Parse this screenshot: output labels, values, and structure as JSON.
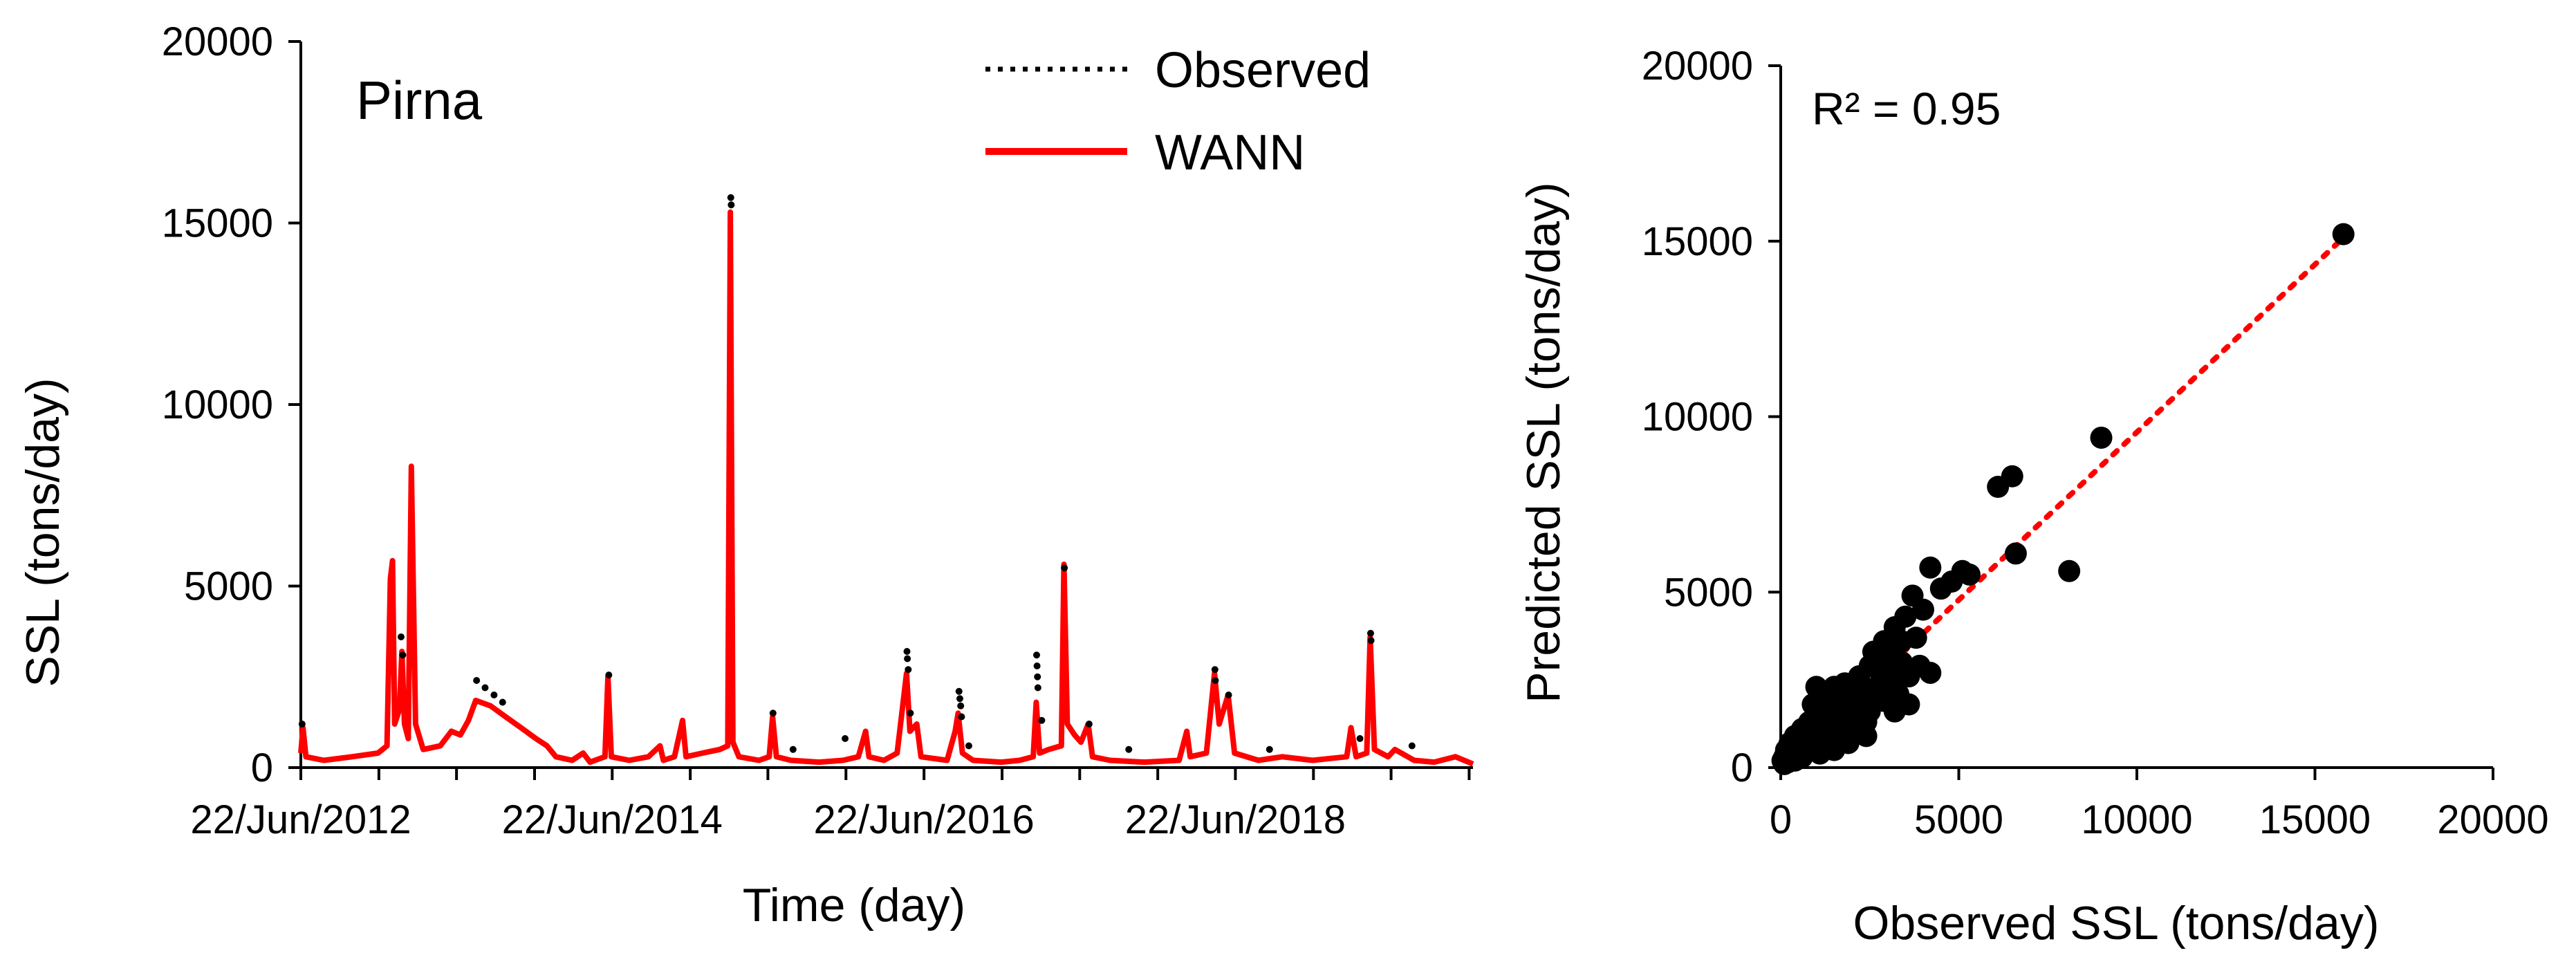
{
  "chart_data": [
    {
      "type": "line",
      "annotation": "Pirna",
      "xlabel": "Time (day)",
      "ylabel": "SSL (tons/day)",
      "xlim": [
        "2012-06-22",
        "2019-12-31"
      ],
      "ylim": [
        0,
        20000
      ],
      "yticks": [
        "0",
        "5000",
        "10000",
        "15000",
        "20000"
      ],
      "xticks": [
        {
          "date": "2012-06-22",
          "label": "22/Jun/2012"
        },
        {
          "date": "2014-06-22",
          "label": "22/Jun/2014"
        },
        {
          "date": "2016-06-22",
          "label": "22/Jun/2016"
        },
        {
          "date": "2018-06-22",
          "label": "22/Jun/2018"
        }
      ],
      "legend": {
        "position": "top-right",
        "entries": [
          "Observed",
          "WANN"
        ]
      },
      "colors": {
        "observed": "#000000",
        "wann": "#ff0000"
      },
      "series": [
        {
          "name": "WANN",
          "points": [
            [
              "2012-06-22",
              400
            ],
            [
              "2012-06-27",
              1100
            ],
            [
              "2012-07-04",
              300
            ],
            [
              "2012-08-15",
              200
            ],
            [
              "2012-10-20",
              300
            ],
            [
              "2012-12-20",
              400
            ],
            [
              "2013-01-10",
              600
            ],
            [
              "2013-01-18",
              5200
            ],
            [
              "2013-01-23",
              5700
            ],
            [
              "2013-01-28",
              1200
            ],
            [
              "2013-02-08",
              1600
            ],
            [
              "2013-02-14",
              3200
            ],
            [
              "2013-02-20",
              1200
            ],
            [
              "2013-03-01",
              800
            ],
            [
              "2013-03-08",
              8300
            ],
            [
              "2013-03-18",
              1200
            ],
            [
              "2013-04-05",
              500
            ],
            [
              "2013-05-15",
              600
            ],
            [
              "2013-06-10",
              1000
            ],
            [
              "2013-07-01",
              900
            ],
            [
              "2013-07-20",
              1300
            ],
            [
              "2013-08-06",
              1850
            ],
            [
              "2013-09-10",
              1700
            ],
            [
              "2013-10-15",
              1400
            ],
            [
              "2013-11-20",
              1100
            ],
            [
              "2013-12-25",
              800
            ],
            [
              "2014-01-20",
              600
            ],
            [
              "2014-02-10",
              300
            ],
            [
              "2014-03-20",
              200
            ],
            [
              "2014-04-15",
              400
            ],
            [
              "2014-05-01",
              150
            ],
            [
              "2014-06-05",
              300
            ],
            [
              "2014-06-12",
              2500
            ],
            [
              "2014-06-20",
              300
            ],
            [
              "2014-08-01",
              200
            ],
            [
              "2014-09-15",
              300
            ],
            [
              "2014-10-12",
              600
            ],
            [
              "2014-10-20",
              200
            ],
            [
              "2014-11-15",
              300
            ],
            [
              "2014-12-04",
              1300
            ],
            [
              "2014-12-12",
              300
            ],
            [
              "2015-01-20",
              400
            ],
            [
              "2015-03-01",
              500
            ],
            [
              "2015-03-20",
              600
            ],
            [
              "2015-03-26",
              15300
            ],
            [
              "2015-04-01",
              700
            ],
            [
              "2015-04-15",
              300
            ],
            [
              "2015-06-01",
              200
            ],
            [
              "2015-06-25",
              300
            ],
            [
              "2015-07-03",
              1400
            ],
            [
              "2015-07-12",
              300
            ],
            [
              "2015-08-15",
              200
            ],
            [
              "2015-10-20",
              150
            ],
            [
              "2015-12-15",
              200
            ],
            [
              "2016-01-20",
              300
            ],
            [
              "2016-02-06",
              1000
            ],
            [
              "2016-02-14",
              300
            ],
            [
              "2016-03-20",
              200
            ],
            [
              "2016-04-20",
              400
            ],
            [
              "2016-05-01",
              1500
            ],
            [
              "2016-05-12",
              2600
            ],
            [
              "2016-05-20",
              1000
            ],
            [
              "2016-06-05",
              1200
            ],
            [
              "2016-06-15",
              300
            ],
            [
              "2016-08-15",
              200
            ],
            [
              "2016-09-03",
              1000
            ],
            [
              "2016-09-10",
              1500
            ],
            [
              "2016-09-20",
              400
            ],
            [
              "2016-10-15",
              200
            ],
            [
              "2016-12-20",
              150
            ],
            [
              "2017-02-01",
              200
            ],
            [
              "2017-03-05",
              300
            ],
            [
              "2017-03-12",
              1800
            ],
            [
              "2017-03-20",
              400
            ],
            [
              "2017-04-10",
              500
            ],
            [
              "2017-05-10",
              600
            ],
            [
              "2017-05-16",
              5600
            ],
            [
              "2017-05-24",
              1200
            ],
            [
              "2017-06-10",
              900
            ],
            [
              "2017-06-25",
              700
            ],
            [
              "2017-07-12",
              1200
            ],
            [
              "2017-07-22",
              300
            ],
            [
              "2017-09-01",
              200
            ],
            [
              "2017-11-20",
              150
            ],
            [
              "2018-02-10",
              200
            ],
            [
              "2018-02-28",
              1000
            ],
            [
              "2018-03-08",
              300
            ],
            [
              "2018-04-15",
              400
            ],
            [
              "2018-05-04",
              2600
            ],
            [
              "2018-05-15",
              1200
            ],
            [
              "2018-06-05",
              2000
            ],
            [
              "2018-06-20",
              400
            ],
            [
              "2018-08-15",
              200
            ],
            [
              "2018-10-10",
              300
            ],
            [
              "2018-12-20",
              200
            ],
            [
              "2019-03-10",
              300
            ],
            [
              "2019-03-20",
              1100
            ],
            [
              "2019-04-01",
              300
            ],
            [
              "2019-04-26",
              400
            ],
            [
              "2019-05-04",
              3600
            ],
            [
              "2019-05-14",
              500
            ],
            [
              "2019-06-15",
              300
            ],
            [
              "2019-07-01",
              500
            ],
            [
              "2019-08-15",
              200
            ],
            [
              "2019-10-01",
              150
            ],
            [
              "2019-11-20",
              300
            ],
            [
              "2019-12-31",
              100
            ]
          ]
        },
        {
          "name": "Observed",
          "points": [
            [
              "2012-06-25",
              1200
            ],
            [
              "2013-02-12",
              3600
            ],
            [
              "2013-02-16",
              3100
            ],
            [
              "2013-08-08",
              2400
            ],
            [
              "2013-08-28",
              2200
            ],
            [
              "2013-09-18",
              2000
            ],
            [
              "2013-10-08",
              1800
            ],
            [
              "2014-06-14",
              2550
            ],
            [
              "2015-03-27",
              15700
            ],
            [
              "2015-03-28",
              15500
            ],
            [
              "2015-07-04",
              1500
            ],
            [
              "2015-08-20",
              500
            ],
            [
              "2015-12-20",
              800
            ],
            [
              "2016-05-13",
              3200
            ],
            [
              "2016-05-14",
              3000
            ],
            [
              "2016-05-16",
              2700
            ],
            [
              "2016-05-21",
              1500
            ],
            [
              "2016-09-12",
              2100
            ],
            [
              "2016-09-14",
              1900
            ],
            [
              "2016-09-16",
              1700
            ],
            [
              "2016-09-18",
              1400
            ],
            [
              "2016-10-05",
              600
            ],
            [
              "2017-03-13",
              3100
            ],
            [
              "2017-03-14",
              2800
            ],
            [
              "2017-03-15",
              2500
            ],
            [
              "2017-03-16",
              2200
            ],
            [
              "2017-03-25",
              1300
            ],
            [
              "2017-05-17",
              5500
            ],
            [
              "2017-07-14",
              1200
            ],
            [
              "2017-10-15",
              500
            ],
            [
              "2018-05-05",
              2700
            ],
            [
              "2018-05-06",
              2400
            ],
            [
              "2018-06-06",
              2000
            ],
            [
              "2018-09-10",
              500
            ],
            [
              "2019-04-10",
              800
            ],
            [
              "2019-05-05",
              3700
            ],
            [
              "2019-05-06",
              3500
            ],
            [
              "2019-08-10",
              600
            ]
          ]
        }
      ]
    },
    {
      "type": "scatter",
      "annotation": "R² = 0.95",
      "xlabel": "Observed SSL (tons/day)",
      "ylabel": "Predicted SSL (tons/day)",
      "xlim": [
        0,
        20000
      ],
      "ylim": [
        0,
        20000
      ],
      "xticks": [
        "0",
        "5000",
        "10000",
        "15000",
        "20000"
      ],
      "yticks": [
        "0",
        "5000",
        "10000",
        "15000",
        "20000"
      ],
      "colors": {
        "points": "#000000",
        "trendline": "#ff0000"
      },
      "trendline": {
        "x": [
          0,
          15800
        ],
        "y": [
          0,
          15100
        ]
      },
      "points": [
        [
          15800,
          15200
        ],
        [
          9000,
          9400
        ],
        [
          6500,
          8300
        ],
        [
          6100,
          8000
        ],
        [
          8100,
          5600
        ],
        [
          6600,
          6100
        ],
        [
          4200,
          5700
        ],
        [
          5100,
          5600
        ],
        [
          5300,
          5500
        ],
        [
          4800,
          5300
        ],
        [
          4500,
          5100
        ],
        [
          3700,
          4900
        ],
        [
          4000,
          4500
        ],
        [
          3500,
          4300
        ],
        [
          3800,
          3700
        ],
        [
          3200,
          4000
        ],
        [
          2900,
          3600
        ],
        [
          2600,
          3300
        ],
        [
          4200,
          2700
        ],
        [
          3900,
          2900
        ],
        [
          3400,
          3000
        ],
        [
          3000,
          3100
        ],
        [
          2800,
          2700
        ],
        [
          2500,
          2900
        ],
        [
          2200,
          2600
        ],
        [
          1800,
          2400
        ],
        [
          1500,
          2300
        ],
        [
          1000,
          2300
        ],
        [
          900,
          1800
        ],
        [
          1300,
          1900
        ],
        [
          1600,
          1700
        ],
        [
          2000,
          2000
        ],
        [
          2300,
          2200
        ],
        [
          2700,
          2300
        ],
        [
          3100,
          2500
        ],
        [
          3600,
          2600
        ],
        [
          2900,
          1900
        ],
        [
          2600,
          2100
        ],
        [
          2100,
          1600
        ],
        [
          1900,
          1300
        ],
        [
          1700,
          1500
        ],
        [
          1400,
          1300
        ],
        [
          1200,
          1100
        ],
        [
          1100,
          1500
        ],
        [
          1900,
          700
        ],
        [
          2400,
          1300
        ],
        [
          1600,
          1000
        ],
        [
          800,
          1300
        ],
        [
          700,
          1000
        ],
        [
          600,
          800
        ],
        [
          500,
          700
        ],
        [
          400,
          600
        ],
        [
          300,
          500
        ],
        [
          200,
          400
        ],
        [
          100,
          300
        ],
        [
          900,
          700
        ],
        [
          1000,
          600
        ],
        [
          1300,
          800
        ],
        [
          1500,
          500
        ],
        [
          1100,
          400
        ],
        [
          800,
          500
        ],
        [
          600,
          300
        ],
        [
          400,
          200
        ],
        [
          200,
          150
        ],
        [
          100,
          100
        ],
        [
          300,
          300
        ],
        [
          500,
          450
        ],
        [
          700,
          600
        ],
        [
          800,
          900
        ],
        [
          1000,
          1000
        ],
        [
          1200,
          900
        ],
        [
          1400,
          1100
        ],
        [
          1700,
          1200
        ],
        [
          2000,
          1400
        ],
        [
          2200,
          1800
        ],
        [
          2500,
          1600
        ],
        [
          2800,
          2200
        ],
        [
          3300,
          2100
        ],
        [
          3000,
          2800
        ],
        [
          2700,
          3100
        ],
        [
          3100,
          3400
        ],
        [
          3400,
          3600
        ],
        [
          1800,
          2100
        ],
        [
          1500,
          1800
        ],
        [
          1200,
          1600
        ],
        [
          600,
          1100
        ],
        [
          400,
          900
        ],
        [
          250,
          700
        ],
        [
          150,
          500
        ],
        [
          50,
          200
        ],
        [
          3600,
          1800
        ],
        [
          3200,
          1600
        ],
        [
          2400,
          900
        ],
        [
          1800,
          1000
        ],
        [
          2000,
          1200
        ]
      ]
    }
  ]
}
